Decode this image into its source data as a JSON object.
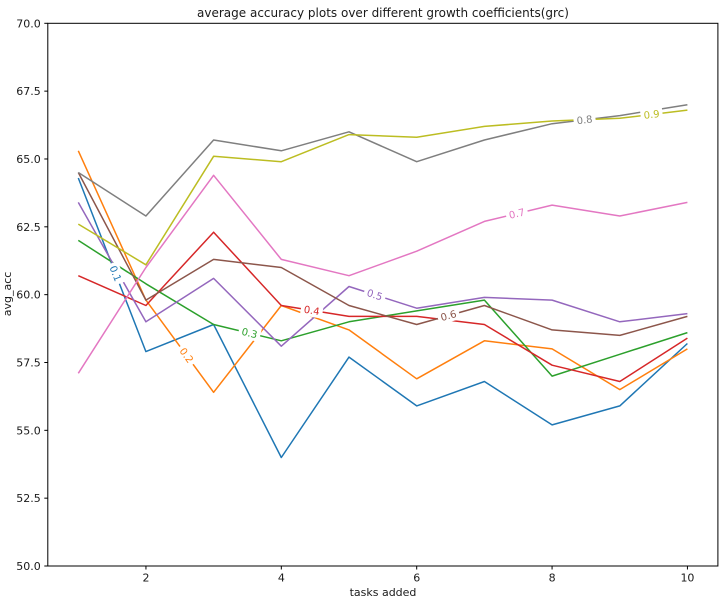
{
  "figure": {
    "background": "#ffffff"
  },
  "chart_data": {
    "type": "line",
    "title": "average accuracy plots over different growth coefficients(grc)",
    "xlabel": "tasks added",
    "ylabel": "avg_acc",
    "x": [
      1,
      2,
      3,
      4,
      5,
      6,
      7,
      8,
      9,
      10
    ],
    "xlim": [
      0.55,
      10.45
    ],
    "ylim": [
      50.0,
      70.0
    ],
    "x_ticks": [
      2,
      4,
      6,
      8,
      10
    ],
    "x_tick_labels": [
      "2",
      "4",
      "6",
      "8",
      "10"
    ],
    "y_ticks": [
      50.0,
      52.5,
      55.0,
      57.5,
      60.0,
      62.5,
      65.0,
      67.5,
      70.0
    ],
    "y_tick_labels": [
      "50.0",
      "52.5",
      "55.0",
      "57.5",
      "60.0",
      "62.5",
      "65.0",
      "67.5",
      "70.0"
    ],
    "grid": false,
    "legend_style": "inline-line-labels",
    "axis_color": "#000000",
    "text_color": "#1a1a1a",
    "series": [
      {
        "name": "0.1",
        "color": "#1f77b4",
        "label_x": 1.55,
        "values": [
          64.3,
          57.9,
          58.9,
          54.0,
          57.7,
          55.9,
          56.8,
          55.2,
          55.9,
          58.2
        ]
      },
      {
        "name": "0.2",
        "color": "#ff7f0e",
        "label_x": 2.6,
        "values": [
          65.3,
          59.8,
          56.4,
          59.6,
          58.7,
          56.9,
          58.3,
          58.0,
          56.5,
          58.0
        ]
      },
      {
        "name": "0.3",
        "color": "#2ca02c",
        "label_x": 3.53,
        "values": [
          62.0,
          60.4,
          58.9,
          58.3,
          59.0,
          59.4,
          59.8,
          57.0,
          57.8,
          58.6
        ]
      },
      {
        "name": "0.4",
        "color": "#d62728",
        "label_x": 4.45,
        "values": [
          60.7,
          59.6,
          62.3,
          59.6,
          59.2,
          59.2,
          58.9,
          57.4,
          56.8,
          58.4
        ]
      },
      {
        "name": "0.5",
        "color": "#9467bd",
        "label_x": 5.38,
        "values": [
          63.4,
          59.0,
          60.6,
          58.1,
          60.3,
          59.5,
          59.9,
          59.8,
          59.0,
          59.3
        ]
      },
      {
        "name": "0.6",
        "color": "#8c564b",
        "label_x": 6.47,
        "values": [
          64.5,
          59.8,
          61.3,
          61.0,
          59.6,
          58.9,
          59.6,
          58.7,
          58.5,
          59.2
        ]
      },
      {
        "name": "0.7",
        "color": "#e377c2",
        "label_x": 7.48,
        "values": [
          57.1,
          61.0,
          64.4,
          61.3,
          60.7,
          61.6,
          62.7,
          63.3,
          62.9,
          63.4
        ]
      },
      {
        "name": "0.8",
        "color": "#7f7f7f",
        "label_x": 8.48,
        "values": [
          64.5,
          62.9,
          65.7,
          65.3,
          66.0,
          64.9,
          65.7,
          66.3,
          66.6,
          67.0
        ]
      },
      {
        "name": "0.9",
        "color": "#bcbd22",
        "label_x": 9.47,
        "values": [
          62.6,
          61.1,
          65.1,
          64.9,
          65.9,
          65.8,
          66.2,
          66.4,
          66.5,
          66.8
        ]
      }
    ]
  }
}
